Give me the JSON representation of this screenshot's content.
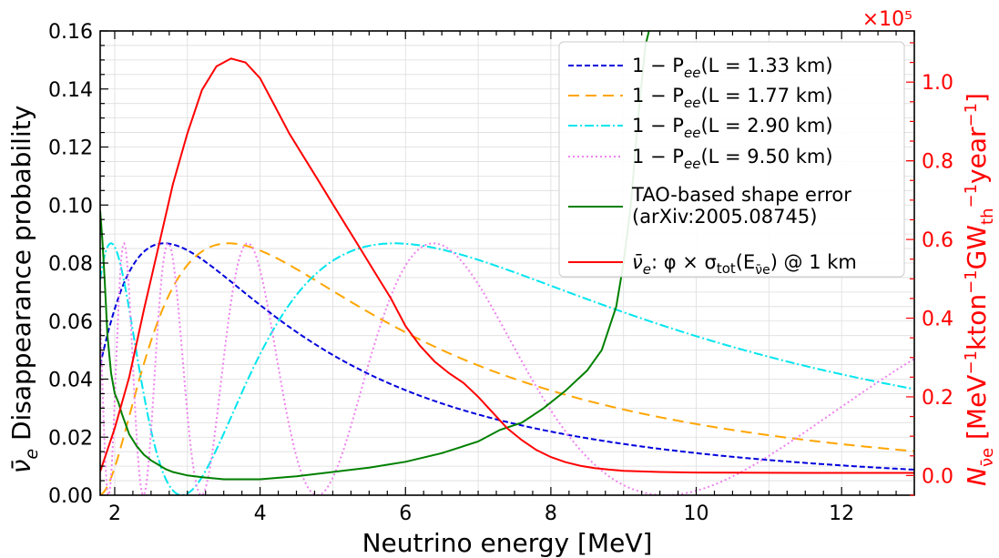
{
  "chart_data": {
    "type": "line",
    "xlabel": "Neutrino energy [MeV]",
    "ylabel": "ν̄e Disappearance probability",
    "y2label": "Nν̄e [MeV⁻¹kton⁻¹GWth⁻¹year⁻¹]",
    "y2_multiplier_label": "×10⁵",
    "xlim": [
      1.8,
      13.0
    ],
    "ylim": [
      0.0,
      0.16
    ],
    "y2lim": [
      -0.05,
      1.13
    ],
    "x_ticks": [
      2,
      4,
      6,
      8,
      10,
      12
    ],
    "x_tick_labels": [
      "2",
      "4",
      "6",
      "8",
      "10",
      "12"
    ],
    "y_ticks": [
      0.0,
      0.02,
      0.04,
      0.06,
      0.08,
      0.1,
      0.12,
      0.14,
      0.16
    ],
    "y_tick_labels": [
      "0.00",
      "0.02",
      "0.04",
      "0.06",
      "0.08",
      "0.10",
      "0.12",
      "0.14",
      "0.16"
    ],
    "y2_ticks": [
      0.0,
      0.2,
      0.4,
      0.6,
      0.8,
      1.0
    ],
    "y2_tick_labels": [
      "0.0",
      "0.2",
      "0.4",
      "0.6",
      "0.8",
      "1.0"
    ],
    "grid": true,
    "legend_position": "top-right",
    "oscillation_amplitude": 0.0868,
    "series": [
      {
        "name": "1 − Pee(L = 1.33 km)",
        "label_main": "1 − P",
        "label_sub": "ee",
        "label_tail": "(L = 1.33 km)",
        "baseline_km": 1.33,
        "axis": "left",
        "color": "#0000dd",
        "dash": "6,3"
      },
      {
        "name": "1 − Pee(L = 1.77 km)",
        "label_main": "1 − P",
        "label_sub": "ee",
        "label_tail": "(L = 1.77 km)",
        "baseline_km": 1.77,
        "axis": "left",
        "color": "#ffa500",
        "dash": "12,7"
      },
      {
        "name": "1 − Pee(L = 2.90 km)",
        "label_main": "1 − P",
        "label_sub": "ee",
        "label_tail": "(L = 2.90 km)",
        "baseline_km": 2.9,
        "axis": "left",
        "color": "#00e5ee",
        "dash": "10,3,2,3"
      },
      {
        "name": "1 − Pee(L = 9.50 km)",
        "label_main": "1 − P",
        "label_sub": "ee",
        "label_tail": "(L = 9.50 km)",
        "baseline_km": 9.5,
        "axis": "left",
        "color": "#ee82ee",
        "dash": "2,3"
      },
      {
        "name": "TAO-based shape error (arXiv:2005.08745)",
        "label_line1": "TAO-based shape error",
        "label_line2": "(arXiv:2005.08745)",
        "axis": "left",
        "color": "#008000",
        "dash": "",
        "x": [
          1.8,
          1.83,
          1.86,
          1.9,
          1.95,
          2.0,
          2.05,
          2.1,
          2.2,
          2.3,
          2.4,
          2.5,
          2.6,
          2.7,
          2.8,
          3.0,
          3.2,
          3.5,
          4.0,
          4.5,
          5.0,
          5.5,
          6.0,
          6.5,
          7.0,
          7.3,
          7.6,
          7.9,
          8.2,
          8.5,
          8.7,
          8.9,
          9.0,
          9.1,
          9.2,
          9.3,
          9.4
        ],
        "values": [
          0.098,
          0.088,
          0.075,
          0.055,
          0.042,
          0.035,
          0.032,
          0.028,
          0.021,
          0.017,
          0.014,
          0.012,
          0.0105,
          0.009,
          0.008,
          0.0068,
          0.0062,
          0.0055,
          0.0055,
          0.0065,
          0.008,
          0.0095,
          0.0115,
          0.0145,
          0.0185,
          0.0225,
          0.025,
          0.03,
          0.036,
          0.043,
          0.05,
          0.065,
          0.08,
          0.1,
          0.13,
          0.155,
          0.165
        ]
      },
      {
        "name": "ν̄e: φ × σtot(Eν̄e) @ 1 km",
        "label_nu": "ν̄",
        "label_nu_sub": "e",
        "label_mid": ": φ × σ",
        "label_tot": "tot",
        "label_arg_open": "(E",
        "label_arg_sub": "ν̄e",
        "label_tail": ") @ 1 km",
        "axis": "right",
        "color": "#ff0000",
        "dash": "",
        "x": [
          1.8,
          2.0,
          2.2,
          2.4,
          2.6,
          2.8,
          3.0,
          3.2,
          3.4,
          3.6,
          3.8,
          4.0,
          4.2,
          4.4,
          4.6,
          4.8,
          5.0,
          5.2,
          5.4,
          5.6,
          5.8,
          6.0,
          6.2,
          6.4,
          6.6,
          6.8,
          7.0,
          7.2,
          7.4,
          7.6,
          7.8,
          8.0,
          8.2,
          8.4,
          8.6,
          8.8,
          9.0,
          9.5,
          10.0,
          11.0,
          12.0,
          13.0
        ],
        "values": [
          0.01,
          0.12,
          0.25,
          0.42,
          0.58,
          0.74,
          0.87,
          0.98,
          1.04,
          1.06,
          1.05,
          1.01,
          0.94,
          0.87,
          0.81,
          0.75,
          0.69,
          0.63,
          0.57,
          0.51,
          0.45,
          0.38,
          0.33,
          0.29,
          0.26,
          0.235,
          0.2,
          0.16,
          0.12,
          0.09,
          0.065,
          0.047,
          0.034,
          0.025,
          0.019,
          0.015,
          0.012,
          0.009,
          0.0075,
          0.007,
          0.0068,
          0.0066
        ]
      }
    ]
  }
}
